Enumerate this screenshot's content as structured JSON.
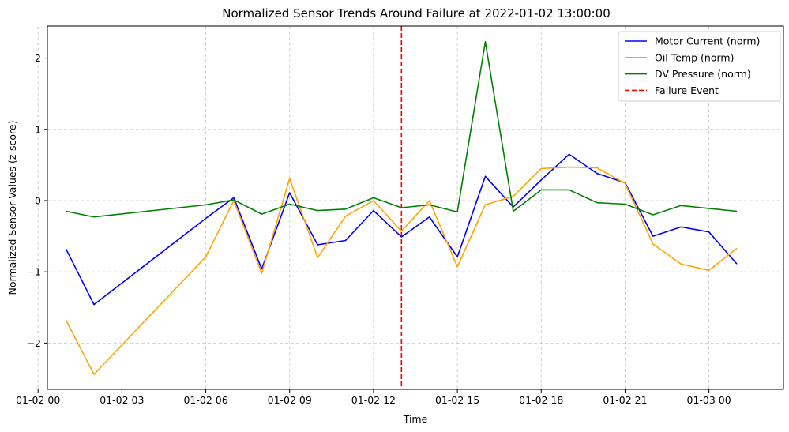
{
  "chart_data": {
    "type": "line",
    "title": "Normalized Sensor Trends Around Failure at 2022-01-02 13:00:00",
    "xlabel": "Time",
    "ylabel": "Normalized Sensor Values (z-score)",
    "x_unit": "datetime",
    "xlim": [
      "2022-01-02 00:20",
      "2022-01-03 02:40"
    ],
    "ylim": [
      -2.65,
      2.45
    ],
    "grid": true,
    "grid_style": "dashed",
    "legend_position": "top-right",
    "x_ticks": [
      {
        "x": "2022-01-02 00:00",
        "label": "01-02 00"
      },
      {
        "x": "2022-01-02 03:00",
        "label": "01-02 03"
      },
      {
        "x": "2022-01-02 06:00",
        "label": "01-02 06"
      },
      {
        "x": "2022-01-02 09:00",
        "label": "01-02 09"
      },
      {
        "x": "2022-01-02 12:00",
        "label": "01-02 12"
      },
      {
        "x": "2022-01-02 15:00",
        "label": "01-02 15"
      },
      {
        "x": "2022-01-02 18:00",
        "label": "01-02 18"
      },
      {
        "x": "2022-01-02 21:00",
        "label": "01-02 21"
      },
      {
        "x": "2022-01-03 00:00",
        "label": "01-03 00"
      }
    ],
    "y_ticks": [
      {
        "y": -2,
        "label": "−2"
      },
      {
        "y": -1,
        "label": "−1"
      },
      {
        "y": 0,
        "label": "0"
      },
      {
        "y": 1,
        "label": "1"
      },
      {
        "y": 2,
        "label": "2"
      }
    ],
    "series": [
      {
        "name": "Motor Current (norm)",
        "color": "#0000ff",
        "points": [
          {
            "x": "2022-01-02 01:00",
            "y": -0.68
          },
          {
            "x": "2022-01-02 02:00",
            "y": -1.46
          },
          {
            "x": "2022-01-02 06:00",
            "y": -0.25
          },
          {
            "x": "2022-01-02 07:00",
            "y": 0.04
          },
          {
            "x": "2022-01-02 08:00",
            "y": -0.96
          },
          {
            "x": "2022-01-02 09:00",
            "y": 0.11
          },
          {
            "x": "2022-01-02 10:00",
            "y": -0.62
          },
          {
            "x": "2022-01-02 11:00",
            "y": -0.56
          },
          {
            "x": "2022-01-02 12:00",
            "y": -0.14
          },
          {
            "x": "2022-01-02 13:00",
            "y": -0.51
          },
          {
            "x": "2022-01-02 14:00",
            "y": -0.23
          },
          {
            "x": "2022-01-02 15:00",
            "y": -0.79
          },
          {
            "x": "2022-01-02 16:00",
            "y": 0.34
          },
          {
            "x": "2022-01-02 17:00",
            "y": -0.09
          },
          {
            "x": "2022-01-02 18:00",
            "y": 0.29
          },
          {
            "x": "2022-01-02 19:00",
            "y": 0.65
          },
          {
            "x": "2022-01-02 20:00",
            "y": 0.38
          },
          {
            "x": "2022-01-02 21:00",
            "y": 0.25
          },
          {
            "x": "2022-01-02 22:00",
            "y": -0.5
          },
          {
            "x": "2022-01-02 23:00",
            "y": -0.37
          },
          {
            "x": "2022-01-03 00:00",
            "y": -0.44
          },
          {
            "x": "2022-01-03 01:00",
            "y": -0.89
          }
        ]
      },
      {
        "name": "Oil Temp (norm)",
        "color": "#ffa500",
        "points": [
          {
            "x": "2022-01-02 01:00",
            "y": -1.68
          },
          {
            "x": "2022-01-02 02:00",
            "y": -2.44
          },
          {
            "x": "2022-01-02 06:00",
            "y": -0.79
          },
          {
            "x": "2022-01-02 07:00",
            "y": 0.0
          },
          {
            "x": "2022-01-02 08:00",
            "y": -1.02
          },
          {
            "x": "2022-01-02 09:00",
            "y": 0.31
          },
          {
            "x": "2022-01-02 10:00",
            "y": -0.8
          },
          {
            "x": "2022-01-02 11:00",
            "y": -0.22
          },
          {
            "x": "2022-01-02 12:00",
            "y": 0.0
          },
          {
            "x": "2022-01-02 13:00",
            "y": -0.43
          },
          {
            "x": "2022-01-02 14:00",
            "y": 0.0
          },
          {
            "x": "2022-01-02 15:00",
            "y": -0.93
          },
          {
            "x": "2022-01-02 16:00",
            "y": -0.06
          },
          {
            "x": "2022-01-02 17:00",
            "y": 0.06
          },
          {
            "x": "2022-01-02 18:00",
            "y": 0.45
          },
          {
            "x": "2022-01-02 19:00",
            "y": 0.47
          },
          {
            "x": "2022-01-02 20:00",
            "y": 0.46
          },
          {
            "x": "2022-01-02 21:00",
            "y": 0.24
          },
          {
            "x": "2022-01-02 22:00",
            "y": -0.61
          },
          {
            "x": "2022-01-02 23:00",
            "y": -0.89
          },
          {
            "x": "2022-01-03 00:00",
            "y": -0.98
          },
          {
            "x": "2022-01-03 01:00",
            "y": -0.67
          }
        ]
      },
      {
        "name": "DV Pressure (norm)",
        "color": "#008000",
        "points": [
          {
            "x": "2022-01-02 01:00",
            "y": -0.15
          },
          {
            "x": "2022-01-02 02:00",
            "y": -0.23
          },
          {
            "x": "2022-01-02 06:00",
            "y": -0.06
          },
          {
            "x": "2022-01-02 07:00",
            "y": 0.01
          },
          {
            "x": "2022-01-02 08:00",
            "y": -0.19
          },
          {
            "x": "2022-01-02 09:00",
            "y": -0.05
          },
          {
            "x": "2022-01-02 10:00",
            "y": -0.14
          },
          {
            "x": "2022-01-02 11:00",
            "y": -0.12
          },
          {
            "x": "2022-01-02 12:00",
            "y": 0.04
          },
          {
            "x": "2022-01-02 13:00",
            "y": -0.1
          },
          {
            "x": "2022-01-02 14:00",
            "y": -0.06
          },
          {
            "x": "2022-01-02 15:00",
            "y": -0.16
          },
          {
            "x": "2022-01-02 16:00",
            "y": 2.23
          },
          {
            "x": "2022-01-02 17:00",
            "y": -0.15
          },
          {
            "x": "2022-01-02 18:00",
            "y": 0.15
          },
          {
            "x": "2022-01-02 19:00",
            "y": 0.15
          },
          {
            "x": "2022-01-02 20:00",
            "y": -0.03
          },
          {
            "x": "2022-01-02 21:00",
            "y": -0.05
          },
          {
            "x": "2022-01-02 22:00",
            "y": -0.2
          },
          {
            "x": "2022-01-02 23:00",
            "y": -0.07
          },
          {
            "x": "2022-01-03 00:00",
            "y": -0.11
          },
          {
            "x": "2022-01-03 01:00",
            "y": -0.15
          }
        ]
      }
    ],
    "vlines": [
      {
        "name": "Failure Event",
        "x": "2022-01-02 13:00",
        "color": "#ff0000",
        "style": "dashed"
      }
    ]
  }
}
